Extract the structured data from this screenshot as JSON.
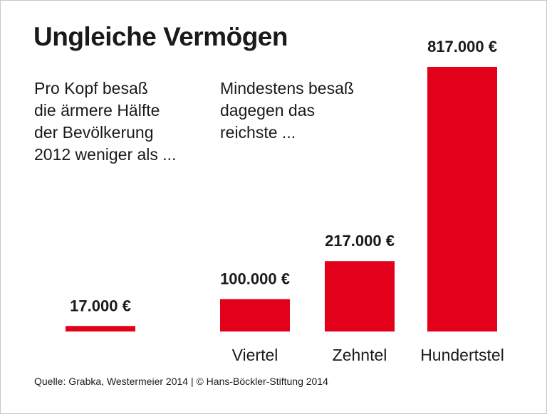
{
  "title": "Ungleiche Vermögen",
  "intro_left": [
    "Pro Kopf besaß",
    "die ärmere Hälfte",
    "der Bevölkerung",
    "2012 weniger als ..."
  ],
  "intro_right": [
    "Mindestens besaß",
    "dagegen das",
    "reichste ..."
  ],
  "source": "Quelle: Grabka, Westermeier 2014 | © Hans-Böckler-Stiftung 2014",
  "colors": {
    "bar": "#e2001a",
    "text": "#1a1a1a"
  },
  "chart_data": {
    "type": "bar",
    "title": "Ungleiche Vermögen",
    "categories": [
      "",
      "Viertel",
      "Zehntel",
      "Hundertstel"
    ],
    "values": [
      17000,
      100000,
      217000,
      817000
    ],
    "value_labels": [
      "17.000 €",
      "100.000 €",
      "217.000 €",
      "817.000 €"
    ],
    "unit": "€",
    "ylim": [
      0,
      817000
    ],
    "xlabel": "",
    "ylabel": "",
    "grid": false
  }
}
